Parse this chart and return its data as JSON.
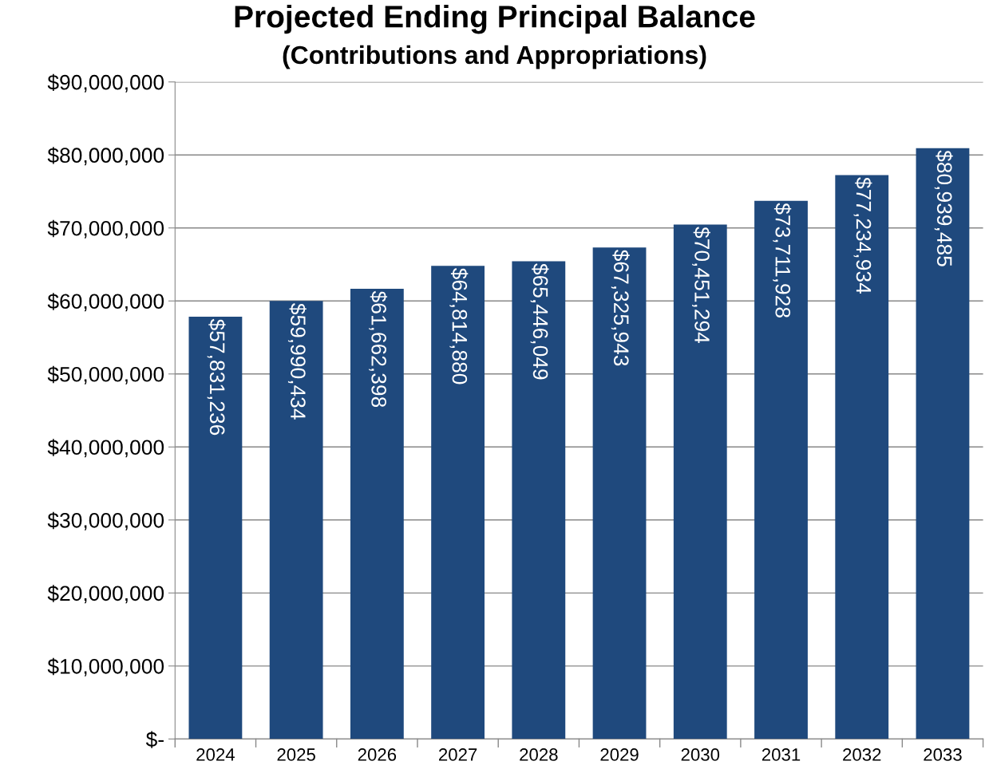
{
  "chart_data": {
    "type": "bar",
    "title": "Projected Ending Principal Balance",
    "subtitle": "(Contributions and Appropriations)",
    "categories": [
      "2024",
      "2025",
      "2026",
      "2027",
      "2028",
      "2029",
      "2030",
      "2031",
      "2032",
      "2033"
    ],
    "values": [
      57831236,
      59990434,
      61662398,
      64814880,
      65446049,
      67325943,
      70451294,
      73711928,
      77234934,
      80939485
    ],
    "color": "#1f497d",
    "ylim": [
      0,
      90000000
    ],
    "yticks": [
      {
        "value": 0,
        "label": "$-"
      },
      {
        "value": 10000000,
        "label": "$10,000,000"
      },
      {
        "value": 20000000,
        "label": "$20,000,000"
      },
      {
        "value": 30000000,
        "label": "$30,000,000"
      },
      {
        "value": 40000000,
        "label": "$40,000,000"
      },
      {
        "value": 50000000,
        "label": "$50,000,000"
      },
      {
        "value": 60000000,
        "label": "$60,000,000"
      },
      {
        "value": 70000000,
        "label": "$70,000,000"
      },
      {
        "value": 80000000,
        "label": "$80,000,000"
      },
      {
        "value": 90000000,
        "label": "$90,000,000"
      }
    ],
    "value_labels": [
      "$57,831,236",
      "$59,990,434",
      "$61,662,398",
      "$64,814,880",
      "$65,446,049",
      "$67,325,943",
      "$70,451,294",
      "$73,711,928",
      "$77,234,934",
      "$80,939,485"
    ],
    "grid": "y"
  }
}
